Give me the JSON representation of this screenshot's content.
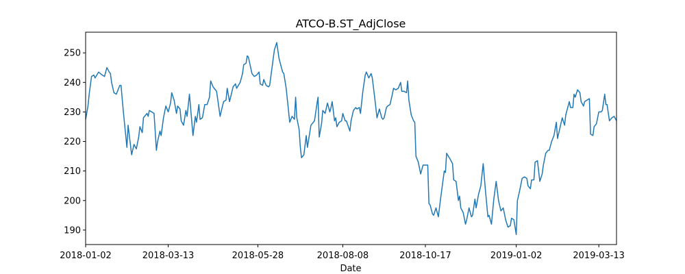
{
  "chart_data": {
    "type": "line",
    "title": "ATCO-B.ST_AdjClose",
    "x_label": "Date",
    "xlim": [
      "2018-01-02",
      "2019-03-28"
    ],
    "xticks": [
      "2018-01-02",
      "2018-03-13",
      "2018-05-28",
      "2018-08-08",
      "2018-10-17",
      "2019-01-02",
      "2019-03-13"
    ],
    "ylim": [
      185.1,
      257.0
    ],
    "yticks": [
      190,
      200,
      210,
      220,
      230,
      240,
      250
    ],
    "grid": false,
    "series": [
      {
        "color": "#1f77b4",
        "x": [
          "2018-01-02",
          "2018-01-04",
          "2018-01-05",
          "2018-01-07",
          "2018-01-09",
          "2018-01-10",
          "2018-01-13",
          "2018-01-16",
          "2018-01-18",
          "2018-01-20",
          "2018-01-22",
          "2018-01-23",
          "2018-01-24",
          "2018-01-26",
          "2018-01-28",
          "2018-01-31",
          "2018-02-01",
          "2018-02-03",
          "2018-02-06",
          "2018-02-07",
          "2018-02-10",
          "2018-02-12",
          "2018-02-14",
          "2018-02-16",
          "2018-02-17",
          "2018-02-19",
          "2018-02-20",
          "2018-02-23",
          "2018-02-24",
          "2018-02-25",
          "2018-03-01",
          "2018-03-03",
          "2018-03-04",
          "2018-03-06",
          "2018-03-07",
          "2018-03-09",
          "2018-03-11",
          "2018-03-13",
          "2018-03-15",
          "2018-03-16",
          "2018-03-18",
          "2018-03-20",
          "2018-03-21",
          "2018-03-23",
          "2018-03-24",
          "2018-03-26",
          "2018-03-28",
          "2018-03-29",
          "2018-03-31",
          "2018-04-03",
          "2018-04-05",
          "2018-04-06",
          "2018-04-08",
          "2018-04-09",
          "2018-04-11",
          "2018-04-13",
          "2018-04-15",
          "2018-04-17",
          "2018-04-18",
          "2018-04-20",
          "2018-04-23",
          "2018-04-26",
          "2018-04-28",
          "2018-04-29",
          "2018-05-01",
          "2018-05-02",
          "2018-05-04",
          "2018-05-07",
          "2018-05-09",
          "2018-05-10",
          "2018-05-13",
          "2018-05-15",
          "2018-05-16",
          "2018-05-18",
          "2018-05-19",
          "2018-05-20",
          "2018-05-23",
          "2018-05-25",
          "2018-05-27",
          "2018-05-29",
          "2018-05-30",
          "2018-06-01",
          "2018-06-02",
          "2018-06-04",
          "2018-06-06",
          "2018-06-07",
          "2018-06-09",
          "2018-06-11",
          "2018-06-13",
          "2018-06-15",
          "2018-06-18",
          "2018-06-19",
          "2018-06-21",
          "2018-06-24",
          "2018-06-26",
          "2018-06-28",
          "2018-06-29",
          "2018-06-30",
          "2018-07-02",
          "2018-07-03",
          "2018-07-04",
          "2018-07-06",
          "2018-07-08",
          "2018-07-09",
          "2018-07-10",
          "2018-07-12",
          "2018-07-14",
          "2018-07-15",
          "2018-07-17",
          "2018-07-18",
          "2018-07-19",
          "2018-07-21",
          "2018-07-22",
          "2018-07-24",
          "2018-07-26",
          "2018-07-28",
          "2018-07-29",
          "2018-07-30",
          "2018-08-01",
          "2018-08-02",
          "2018-08-03",
          "2018-08-05",
          "2018-08-07",
          "2018-08-08",
          "2018-08-10",
          "2018-08-11",
          "2018-08-14",
          "2018-08-15",
          "2018-08-17",
          "2018-08-19",
          "2018-08-20",
          "2018-08-22",
          "2018-08-23",
          "2018-08-25",
          "2018-08-27",
          "2018-08-28",
          "2018-08-30",
          "2018-09-01",
          "2018-09-02",
          "2018-09-04",
          "2018-09-06",
          "2018-09-08",
          "2018-09-09",
          "2018-09-10",
          "2018-09-11",
          "2018-09-12",
          "2018-09-14",
          "2018-09-15",
          "2018-09-17",
          "2018-09-19",
          "2018-09-20",
          "2018-09-22",
          "2018-09-24",
          "2018-09-26",
          "2018-09-27",
          "2018-09-29",
          "2018-10-01",
          "2018-10-02",
          "2018-10-03",
          "2018-10-05",
          "2018-10-07",
          "2018-10-08",
          "2018-10-09",
          "2018-10-11",
          "2018-10-13",
          "2018-10-15",
          "2018-10-17",
          "2018-10-19",
          "2018-10-20",
          "2018-10-21",
          "2018-10-23",
          "2018-10-24",
          "2018-10-26",
          "2018-10-28",
          "2018-10-30",
          "2018-11-02",
          "2018-11-03",
          "2018-11-04",
          "2018-11-07",
          "2018-11-09",
          "2018-11-10",
          "2018-11-12",
          "2018-11-14",
          "2018-11-15",
          "2018-11-16",
          "2018-11-18",
          "2018-11-20",
          "2018-11-21",
          "2018-11-23",
          "2018-11-25",
          "2018-11-26",
          "2018-11-28",
          "2018-11-29",
          "2018-12-01",
          "2018-12-03",
          "2018-12-05",
          "2018-12-07",
          "2018-12-09",
          "2018-12-10",
          "2018-12-12",
          "2018-12-14",
          "2018-12-16",
          "2018-12-18",
          "2018-12-20",
          "2018-12-22",
          "2018-12-24",
          "2018-12-26",
          "2018-12-28",
          "2018-12-29",
          "2018-12-31",
          "2019-01-02",
          "2019-01-03",
          "2019-01-05",
          "2019-01-07",
          "2019-01-09",
          "2019-01-11",
          "2019-01-12",
          "2019-01-14",
          "2019-01-15",
          "2019-01-17",
          "2019-01-18",
          "2019-01-20",
          "2019-01-22",
          "2019-01-24",
          "2019-01-25",
          "2019-01-27",
          "2019-01-29",
          "2019-01-30",
          "2019-02-01",
          "2019-02-03",
          "2019-02-05",
          "2019-02-06",
          "2019-02-08",
          "2019-02-10",
          "2019-02-12",
          "2019-02-13",
          "2019-02-16",
          "2019-02-17",
          "2019-02-19",
          "2019-02-20",
          "2019-02-21",
          "2019-02-23",
          "2019-02-25",
          "2019-02-26",
          "2019-02-28",
          "2019-03-01",
          "2019-03-03",
          "2019-03-05",
          "2019-03-06",
          "2019-03-08",
          "2019-03-09",
          "2019-03-11",
          "2019-03-13",
          "2019-03-15",
          "2019-03-16",
          "2019-03-18",
          "2019-03-19",
          "2019-03-20",
          "2019-03-22",
          "2019-03-24",
          "2019-03-26",
          "2019-03-28"
        ],
        "values": [
          227.5,
          232,
          236,
          242,
          242.5,
          241.5,
          243.5,
          242.5,
          242,
          245,
          243.5,
          243,
          240,
          236.5,
          236,
          239,
          239,
          230,
          218,
          225.5,
          215.5,
          219,
          217.5,
          221.5,
          225,
          223,
          228,
          229.5,
          228.5,
          230.5,
          229.5,
          217,
          220,
          223.5,
          222,
          228,
          232,
          230,
          233,
          236.5,
          234,
          229.5,
          232,
          231,
          227,
          225.5,
          230.5,
          228.5,
          236,
          222,
          228.5,
          226.5,
          232.5,
          227.5,
          228,
          232.5,
          232.5,
          235,
          240.5,
          238.5,
          237,
          228.5,
          232,
          233.5,
          234,
          238,
          233.5,
          238.5,
          239.5,
          238,
          240,
          243,
          246,
          246.5,
          249,
          248.5,
          243,
          242,
          242.5,
          243.5,
          239.5,
          239,
          241,
          239,
          238.5,
          239,
          245,
          251,
          253.5,
          248,
          243.5,
          243,
          238,
          226.5,
          228.5,
          227.5,
          235,
          228,
          224,
          218,
          214.5,
          215.5,
          222,
          218,
          220.5,
          225.5,
          226.5,
          227,
          232.5,
          235,
          221.5,
          226,
          230.5,
          229.5,
          233,
          230,
          231.5,
          233.5,
          227,
          228,
          225,
          226.5,
          227,
          229.5,
          227,
          227,
          223.5,
          227,
          230.5,
          231.5,
          231,
          231.5,
          229.5,
          237,
          242.5,
          243.5,
          241.5,
          243,
          241.5,
          235,
          228,
          231,
          229.5,
          228,
          227.5,
          228,
          231.5,
          232,
          232.5,
          236,
          238,
          237.5,
          238,
          240,
          237,
          237,
          236.5,
          240.5,
          234,
          229,
          227,
          226.5,
          215,
          213,
          209,
          212,
          212,
          212,
          199,
          198.5,
          195.5,
          195,
          197.5,
          194.5,
          201,
          210,
          209.5,
          216,
          214,
          212.5,
          207,
          206.5,
          200,
          201.5,
          197.5,
          196,
          192,
          193.5,
          197.5,
          194.5,
          195,
          200.5,
          197.5,
          202,
          205,
          212.5,
          203,
          194.5,
          195,
          192,
          200.5,
          206.5,
          200,
          196.5,
          197.5,
          193.5,
          191,
          191.5,
          194,
          193.5,
          188.5,
          200,
          203.5,
          207.5,
          208,
          207.5,
          205,
          204,
          207,
          207,
          213,
          213.5,
          206.5,
          209,
          212,
          216,
          217,
          217,
          220,
          222,
          226.5,
          221,
          224.5,
          228,
          225.5,
          229,
          233.5,
          231.5,
          231.5,
          236,
          235,
          237.5,
          236.5,
          233.5,
          232,
          233.5,
          234,
          234.5,
          222.5,
          222,
          225,
          226,
          230,
          230,
          230.5,
          236,
          232.5,
          232.5,
          227,
          228,
          228.5,
          227
        ]
      }
    ]
  }
}
